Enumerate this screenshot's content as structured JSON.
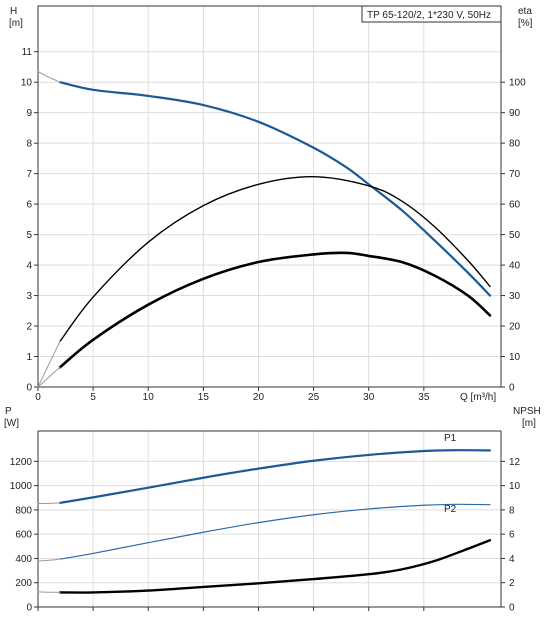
{
  "colors": {
    "head": "#1b5a93",
    "efficiency": "#000000",
    "efficiency_total": "#000000",
    "p1": "#1b5a93",
    "p2": "#2a6aa8",
    "npsh": "#000000",
    "extension": "#9a9a9a",
    "grid": "#dddddd",
    "frame": "#333333"
  },
  "chart_data": [
    {
      "type": "line",
      "title": "TP 65-120/2, 1*230 V, 50Hz",
      "xlabel": "Q [m³/h]",
      "ylabel_top": "H",
      "ylabel_unit": "[m]",
      "y2label_top": "eta",
      "y2label_unit": "[%]",
      "xlim": [
        0,
        42
      ],
      "ylim": [
        0,
        12.5
      ],
      "y2lim": [
        0,
        125
      ],
      "x_ticks": [
        0,
        5,
        10,
        15,
        20,
        25,
        30,
        35
      ],
      "y_ticks": [
        0,
        1,
        2,
        3,
        4,
        5,
        6,
        7,
        8,
        9,
        10,
        11
      ],
      "y2_ticks": [
        0,
        10,
        20,
        30,
        40,
        50,
        60,
        70,
        80,
        90,
        100
      ],
      "grid": true,
      "series": [
        {
          "key": "head",
          "axis": "left",
          "line_width": 2.2,
          "x": [
            2,
            5,
            10,
            15,
            20,
            25,
            28,
            30,
            33,
            36,
            39,
            41
          ],
          "y": [
            10.0,
            9.75,
            9.55,
            9.25,
            8.7,
            7.85,
            7.2,
            6.65,
            5.8,
            4.8,
            3.75,
            3.0
          ]
        },
        {
          "key": "head_extension",
          "axis": "left",
          "line_width": 1,
          "x": [
            0,
            0.5,
            1,
            1.5,
            2
          ],
          "y": [
            10.35,
            10.25,
            10.16,
            10.08,
            10.0
          ]
        },
        {
          "key": "efficiency",
          "axis": "right",
          "line_width": 1.4,
          "x": [
            2,
            5,
            10,
            15,
            20,
            25,
            30,
            33,
            36,
            39,
            41
          ],
          "y": [
            15,
            29.5,
            47.5,
            59.5,
            66.5,
            69,
            66,
            61,
            52.5,
            41.5,
            33
          ]
        },
        {
          "key": "efficiency_extension",
          "axis": "right",
          "line_width": 1,
          "x": [
            0,
            0.5,
            1,
            1.5,
            2
          ],
          "y": [
            0,
            3.8,
            7.6,
            11.3,
            15
          ]
        },
        {
          "key": "efficiency_total",
          "axis": "right",
          "line_width": 2.6,
          "x": [
            2,
            5,
            10,
            15,
            20,
            25,
            28,
            30,
            33,
            36,
            39,
            41
          ],
          "y": [
            6.5,
            15.5,
            27,
            35.5,
            41,
            43.5,
            44,
            43,
            41,
            36.5,
            30,
            23.5
          ]
        },
        {
          "key": "efficiency_total_extension",
          "axis": "right",
          "line_width": 1,
          "x": [
            0,
            0.5,
            1,
            1.5,
            2
          ],
          "y": [
            0,
            1.6,
            3.25,
            4.9,
            6.5
          ]
        }
      ]
    },
    {
      "type": "line",
      "ylabel_top": "P",
      "ylabel_unit": "[W]",
      "y2label_top": "NPSH",
      "y2label_unit": "[m]",
      "xlim": [
        0,
        42
      ],
      "ylim": [
        0,
        1450
      ],
      "y2lim": [
        0,
        14.5
      ],
      "x_ticks": [
        0,
        5,
        10,
        15,
        20,
        25,
        30,
        35
      ],
      "y_ticks": [
        0,
        200,
        400,
        600,
        800,
        1000,
        1200
      ],
      "y2_ticks": [
        0,
        2,
        4,
        6,
        8,
        10,
        12
      ],
      "grid": true,
      "series": [
        {
          "key": "p1",
          "name": "P1",
          "axis": "left",
          "line_width": 2.2,
          "x": [
            2,
            5,
            10,
            15,
            20,
            25,
            30,
            35,
            38,
            41
          ],
          "y": [
            858,
            903,
            983,
            1065,
            1140,
            1205,
            1253,
            1285,
            1292,
            1290
          ]
        },
        {
          "key": "p1_extension",
          "axis": "left",
          "line_width": 1,
          "x": [
            0,
            1,
            2
          ],
          "y": [
            852,
            854,
            858
          ]
        },
        {
          "key": "p2",
          "name": "P2",
          "axis": "left",
          "line_width": 1.2,
          "x": [
            2,
            5,
            10,
            15,
            20,
            25,
            30,
            35,
            38,
            41
          ],
          "y": [
            395,
            441,
            530,
            616,
            695,
            760,
            808,
            838,
            846,
            843
          ]
        },
        {
          "key": "p2_extension",
          "axis": "left",
          "line_width": 1,
          "x": [
            0,
            1,
            2
          ],
          "y": [
            378,
            385,
            395
          ]
        },
        {
          "key": "npsh",
          "axis": "right",
          "line_width": 2.4,
          "x": [
            2,
            5,
            10,
            15,
            20,
            25,
            30,
            33,
            36,
            39,
            41
          ],
          "y": [
            1.2,
            1.2,
            1.35,
            1.65,
            1.95,
            2.3,
            2.7,
            3.1,
            3.8,
            4.8,
            5.5
          ]
        },
        {
          "key": "npsh_extension",
          "axis": "right",
          "line_width": 1,
          "x": [
            0,
            1,
            2
          ],
          "y": [
            1.25,
            1.22,
            1.2
          ]
        }
      ]
    }
  ]
}
